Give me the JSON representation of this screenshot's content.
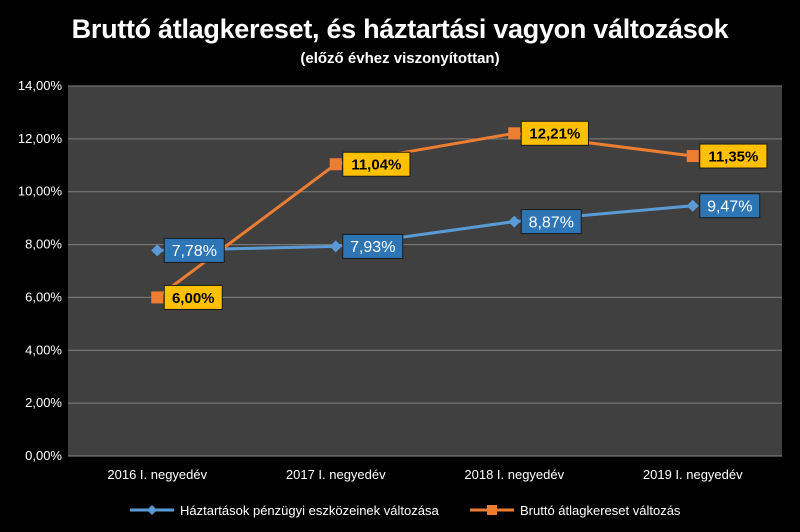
{
  "chart_data": {
    "type": "line",
    "title": "Bruttó átlagkereset, és háztartási vagyon változások",
    "subtitle": "(előző évhez viszonyítottan)",
    "categories": [
      "2016 I. negyedév",
      "2017 I. negyedév",
      "2018 I. negyedév",
      "2019 I. negyedév"
    ],
    "ylim": [
      0,
      14
    ],
    "yticks": [
      "0,00%",
      "2,00%",
      "4,00%",
      "6,00%",
      "8,00%",
      "10,00%",
      "12,00%",
      "14,00%"
    ],
    "grid": true,
    "legend_position": "bottom",
    "series": [
      {
        "name": "Háztartások pénzügyi eszközeinek változása",
        "values": [
          7.78,
          7.93,
          8.87,
          9.47
        ],
        "labels": [
          "7,78%",
          "7,93%",
          "8,87%",
          "9,47%"
        ],
        "color": "#5b9bd5",
        "marker": "diamond",
        "label_bg": "#2e75b6",
        "label_color": "#ffffff"
      },
      {
        "name": "Bruttó átlagkereset változás",
        "values": [
          6.0,
          11.04,
          12.21,
          11.35
        ],
        "labels": [
          "6,00%",
          "11,04%",
          "12,21%",
          "11,35%"
        ],
        "color": "#ed7d31",
        "marker": "square",
        "label_bg": "#ffc000",
        "label_color": "#000000"
      }
    ],
    "colors": {
      "background": "#000000",
      "plot_area": "#404040",
      "gridline": "#7f7f7f"
    }
  }
}
